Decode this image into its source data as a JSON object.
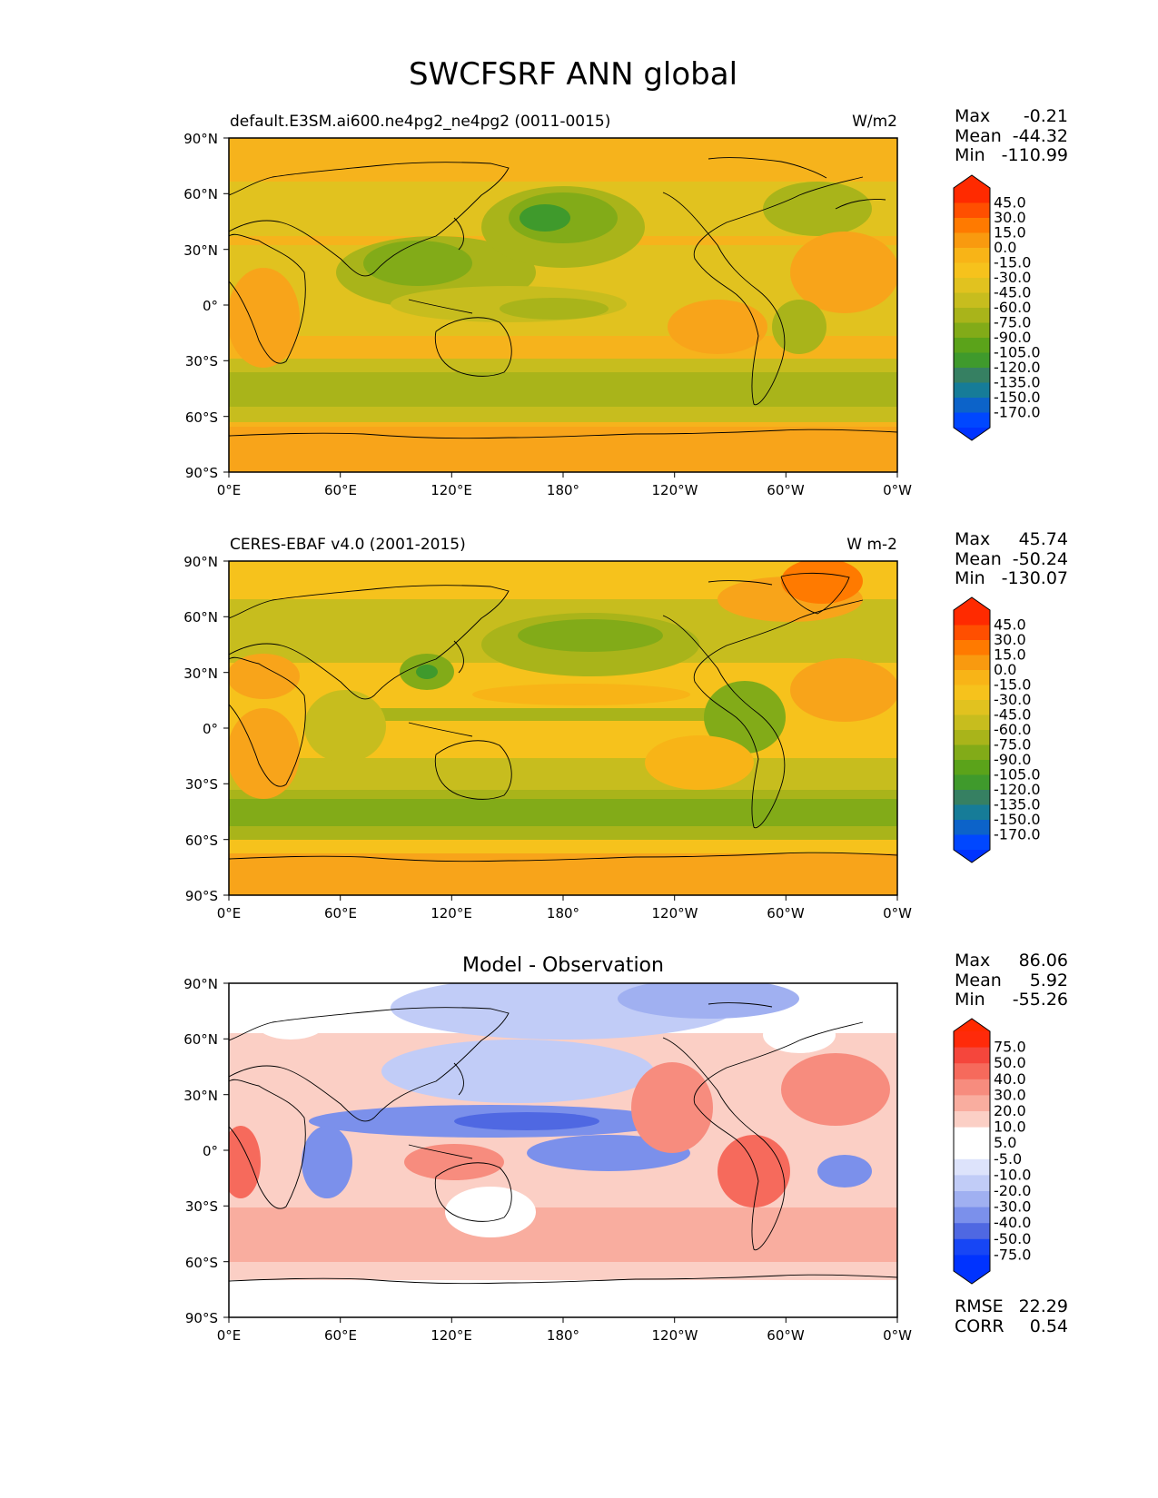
{
  "title": "SWCFSRF ANN global",
  "chart_data": [
    {
      "type": "heatmap",
      "id": "model",
      "title_left": "default.E3SM.ai600.ne4pg2_ne4pg2 (0011-0015)",
      "title_right": "W/m2",
      "title_center": "",
      "stats": [
        {
          "label": "Max",
          "value": "-0.21"
        },
        {
          "label": "Mean",
          "value": "-44.32"
        },
        {
          "label": "Min",
          "value": "-110.99"
        }
      ],
      "colorbar_levels": [
        "45.0",
        "30.0",
        "15.0",
        "0.0",
        "-15.0",
        "-30.0",
        "-45.0",
        "-60.0",
        "-75.0",
        "-90.0",
        "-105.0",
        "-120.0",
        "-135.0",
        "-150.0",
        "-170.0"
      ],
      "colorbar_colors": [
        "#ff2a00",
        "#ff4f00",
        "#ff7a00",
        "#f99a0f",
        "#f8b417",
        "#f6c21c",
        "#e1c21f",
        "#c7bd1e",
        "#a9b41a",
        "#82ab18",
        "#5ba31a",
        "#3f9a2c",
        "#368062",
        "#167c98",
        "#0c63c9",
        "#0047ff"
      ],
      "extremes_colors": {
        "over": "#ff2a00",
        "under": "#0033ff"
      }
    },
    {
      "type": "heatmap",
      "id": "obs",
      "title_left": "CERES-EBAF v4.0 (2001-2015)",
      "title_right": "W m-2",
      "title_center": "",
      "stats": [
        {
          "label": "Max",
          "value": "45.74"
        },
        {
          "label": "Mean",
          "value": "-50.24"
        },
        {
          "label": "Min",
          "value": "-130.07"
        }
      ],
      "colorbar_levels": [
        "45.0",
        "30.0",
        "15.0",
        "0.0",
        "-15.0",
        "-30.0",
        "-45.0",
        "-60.0",
        "-75.0",
        "-90.0",
        "-105.0",
        "-120.0",
        "-135.0",
        "-150.0",
        "-170.0"
      ],
      "colorbar_colors": [
        "#ff2a00",
        "#ff4f00",
        "#ff7a00",
        "#f99a0f",
        "#f8b417",
        "#f6c21c",
        "#e1c21f",
        "#c7bd1e",
        "#a9b41a",
        "#82ab18",
        "#5ba31a",
        "#3f9a2c",
        "#368062",
        "#167c98",
        "#0c63c9",
        "#0047ff"
      ],
      "extremes_colors": {
        "over": "#ff2a00",
        "under": "#0033ff"
      }
    },
    {
      "type": "heatmap",
      "id": "diff",
      "title_left": "",
      "title_right": "",
      "title_center": "Model - Observation",
      "stats": [
        {
          "label": "Max",
          "value": "86.06"
        },
        {
          "label": "Mean",
          "value": "5.92"
        },
        {
          "label": "Min",
          "value": "-55.26"
        }
      ],
      "footer_stats": [
        {
          "label": "RMSE",
          "value": "22.29"
        },
        {
          "label": "CORR",
          "value": "0.54"
        }
      ],
      "colorbar_levels": [
        "75.0",
        "50.0",
        "40.0",
        "30.0",
        "20.0",
        "10.0",
        "5.0",
        "-5.0",
        "-10.0",
        "-20.0",
        "-30.0",
        "-40.0",
        "-50.0",
        "-75.0"
      ],
      "colorbar_colors": [
        "#ff2a0a",
        "#f5463c",
        "#f66a5c",
        "#f78c7e",
        "#f9ad9f",
        "#fbcfc5",
        "#ffffff",
        "#ffffff",
        "#dde3fb",
        "#c1ccf7",
        "#a0b0f1",
        "#7b90eb",
        "#4f68e2",
        "#1746f5",
        "#0033ff"
      ],
      "extremes_colors": {
        "over": "#ff2a00",
        "under": "#0033ff"
      }
    }
  ],
  "axes": {
    "lat_ticks": [
      "90°N",
      "60°N",
      "30°N",
      "0°",
      "30°S",
      "60°S",
      "90°S"
    ],
    "lon_ticks": [
      "0°E",
      "60°E",
      "120°E",
      "180°",
      "120°W",
      "60°W",
      "0°W"
    ],
    "lat_range": [
      -90,
      90
    ],
    "lon_range": [
      0,
      360
    ]
  }
}
